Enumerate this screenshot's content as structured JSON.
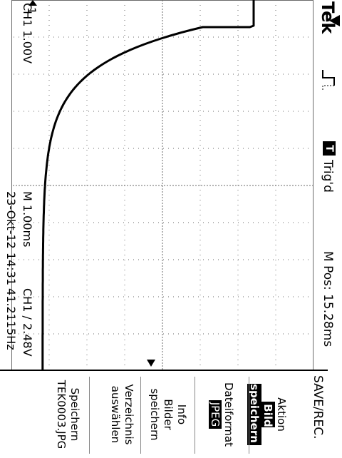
{
  "header": {
    "brand": "Tek",
    "trigger_status_badge": "T",
    "trigger_status": "Trig'd",
    "mpos": "M Pos: 15.28ms"
  },
  "footer": {
    "ch1_scale": "CH1  1.00V",
    "timebase": "M 1.00ms",
    "trigger": "CH1  /  2.48V",
    "date": "23-Okt-12 14:31",
    "frequency": "41.2115Hz"
  },
  "markers": {
    "ch1_ground": "1"
  },
  "menu": {
    "title": "SAVE/REC.",
    "aktion_label": "Aktion",
    "aktion_value": "Bild speichern",
    "dateiformat_label": "Dateiformat",
    "dateiformat_value": "JPEG",
    "info_line1": "Info",
    "info_line2": "Bilder",
    "info_line3": "speichern",
    "verz_line1": "Verzeichnis",
    "verz_line2": "auswählen",
    "speichern_label": "Speichern",
    "speichern_file": "TEK0003.JPG"
  },
  "colors": {
    "trace": "#000000",
    "grid": "#6a6a6a",
    "background": "#ffffff"
  }
}
